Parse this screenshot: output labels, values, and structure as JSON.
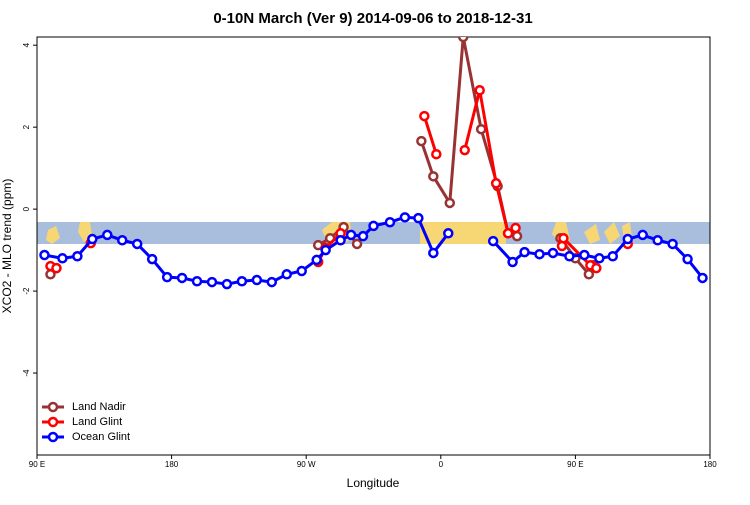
{
  "chart_data": {
    "type": "line",
    "title": "0-10N March (Ver 9)   2014-09-06 to 2018-12-31",
    "x_label": "Longitude",
    "y_label": "XCO2 - MLO trend (ppm)",
    "xlim": [
      90,
      540
    ],
    "xticks": [
      {
        "value": 90,
        "label": "90 E"
      },
      180,
      {
        "value": 270,
        "label": "90 W"
      },
      {
        "value": 360,
        "label": "0"
      },
      {
        "value": 450,
        "label": "90 E"
      },
      {
        "value": 540,
        "label": "180"
      }
    ],
    "ylim": [
      -6,
      4.2
    ],
    "yticks": [
      -4,
      -2,
      0,
      2,
      4
    ],
    "legend": "bottom-left",
    "series": [
      {
        "name": "Land Nadir",
        "color": "#993333",
        "x": [
          99,
          103,
          null,
          278,
          286,
          295,
          304,
          null,
          347,
          355,
          366,
          375,
          387,
          398,
          405,
          411,
          null,
          440,
          450,
          459,
          462
        ],
        "values": [
          -1.59,
          -1.44,
          null,
          -0.88,
          -0.71,
          -0.44,
          -0.85,
          null,
          1.66,
          0.8,
          0.15,
          4.2,
          1.95,
          0.56,
          -0.59,
          -0.66,
          null,
          -0.71,
          -1.2,
          -1.59,
          -1.37
        ]
      },
      {
        "name": "Land Glint",
        "color": "#ff0000",
        "x": [
          99,
          103,
          null,
          126,
          null,
          278,
          283,
          293,
          null,
          349,
          357,
          null,
          376,
          386,
          397,
          405,
          410,
          null,
          441,
          442,
          460,
          464,
          null,
          485
        ],
        "values": [
          -1.39,
          -1.44,
          null,
          -0.83,
          null,
          -1.29,
          -0.95,
          -0.59,
          null,
          2.27,
          1.34,
          null,
          1.44,
          2.9,
          0.63,
          -0.59,
          -0.46,
          null,
          -0.9,
          -0.71,
          -1.37,
          -1.44,
          null,
          -0.85
        ]
      },
      {
        "name": "Ocean Glint",
        "color": "#0000ff",
        "x": [
          95,
          107,
          117,
          127,
          137,
          147,
          157,
          167,
          177,
          187,
          197,
          207,
          217,
          227,
          237,
          247,
          257,
          267,
          277,
          283,
          293,
          300,
          308,
          315,
          326,
          336,
          345,
          355,
          365,
          null,
          395,
          408,
          416,
          426,
          435,
          446,
          456,
          466,
          475,
          485,
          495,
          505,
          515,
          525,
          535
        ],
        "values": [
          -1.12,
          -1.2,
          -1.15,
          -0.73,
          -0.63,
          -0.76,
          -0.85,
          -1.22,
          -1.66,
          -1.68,
          -1.76,
          -1.78,
          -1.83,
          -1.76,
          -1.73,
          -1.78,
          -1.59,
          -1.51,
          -1.24,
          -1.0,
          -0.76,
          -0.63,
          -0.66,
          -0.41,
          -0.32,
          -0.2,
          -0.22,
          -1.07,
          -0.59,
          null,
          -0.78,
          -1.29,
          -1.05,
          -1.1,
          -1.07,
          -1.15,
          -1.12,
          -1.2,
          -1.15,
          -0.73,
          -0.63,
          -0.76,
          -0.85,
          -1.22,
          -1.68
        ]
      }
    ]
  }
}
